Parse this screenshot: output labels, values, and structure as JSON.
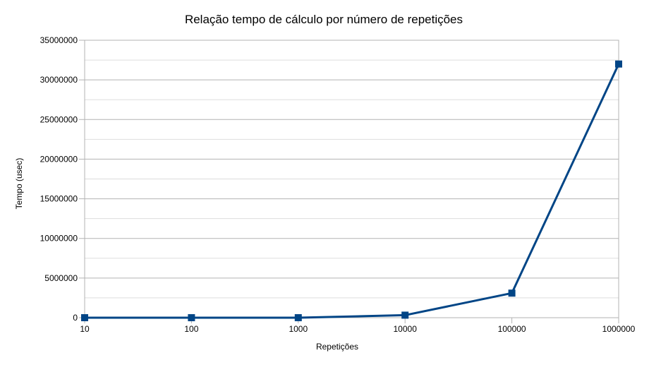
{
  "chart_data": {
    "type": "line",
    "title": "Relação tempo de cálculo por número de repetições",
    "xlabel": "Repetições",
    "ylabel": "Tempo (usec)",
    "categories": [
      "10",
      "100",
      "1000",
      "10000",
      "100000",
      "1000000"
    ],
    "series": [
      {
        "values": [
          32,
          320,
          3200,
          320000,
          3100000,
          32000000
        ],
        "color": "#004586",
        "marker": "square"
      }
    ],
    "ylim": [
      0,
      35000000
    ],
    "yticks": [
      0,
      5000000,
      10000000,
      15000000,
      20000000,
      25000000,
      30000000,
      35000000
    ],
    "ytick_labels": [
      "0",
      "5000000",
      "10000000",
      "15000000",
      "20000000",
      "25000000",
      "30000000",
      "35000000"
    ],
    "grid": true,
    "minor_grid": true,
    "legend": "none"
  }
}
